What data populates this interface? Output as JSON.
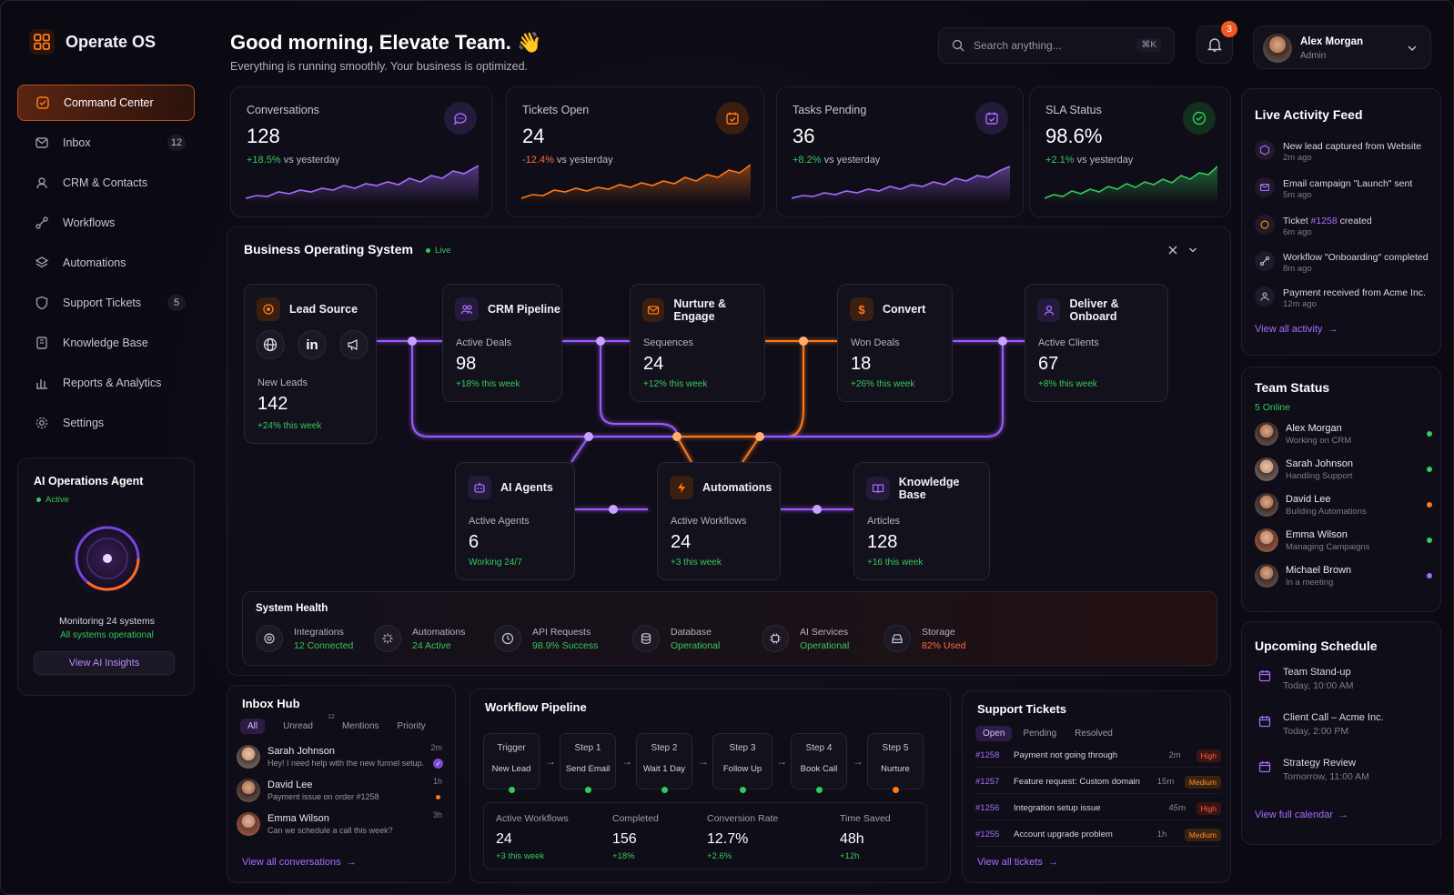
{
  "app": {
    "name": "Operate OS"
  },
  "nav": [
    {
      "label": "Command Center"
    },
    {
      "label": "Inbox",
      "badge": "12"
    },
    {
      "label": "CRM & Contacts"
    },
    {
      "label": "Workflows"
    },
    {
      "label": "Automations"
    },
    {
      "label": "Support Tickets",
      "badge": "5"
    },
    {
      "label": "Knowledge Base"
    },
    {
      "label": "Reports & Analytics"
    },
    {
      "label": "Settings"
    }
  ],
  "agent": {
    "title": "AI Operations Agent",
    "status": "Active",
    "monitoring": "Monitoring 24 systems",
    "ok": "All systems operational",
    "button": "View AI Insights"
  },
  "header": {
    "greeting": "Good morning, Elevate Team. 👋",
    "subtitle": "Everything is running smoothly. Your business is optimized.",
    "search_placeholder": "Search anything...",
    "shortcut": "⌘K",
    "notifications": "3",
    "user_name": "Alex Morgan",
    "user_role": "Admin"
  },
  "kpis": [
    {
      "title": "Conversations",
      "value": "128",
      "delta": "+18.5%",
      "delta_text": "vs yesterday",
      "color": "#a86cff"
    },
    {
      "title": "Tickets Open",
      "value": "24",
      "delta": "-12.4%",
      "delta_text": "vs yesterday",
      "color": "#ff7a1a"
    },
    {
      "title": "Tasks Pending",
      "value": "36",
      "delta": "+8.2%",
      "delta_text": "vs yesterday",
      "color": "#a86cff"
    },
    {
      "title": "SLA Status",
      "value": "98.6%",
      "delta": "+2.1%",
      "delta_text": "vs yesterday",
      "color": "#35c95c"
    }
  ],
  "bos": {
    "title": "Business Operating System",
    "live": "Live",
    "lead": {
      "title": "Lead Source",
      "label": "New Leads",
      "value": "142",
      "growth": "+24% this week"
    },
    "nodes": [
      {
        "title": "CRM Pipeline",
        "label": "Active Deals",
        "value": "98",
        "growth": "+18% this week"
      },
      {
        "title": "Nurture & Engage",
        "label": "Sequences",
        "value": "24",
        "growth": "+12% this week"
      },
      {
        "title": "Convert",
        "label": "Won Deals",
        "value": "18",
        "growth": "+26% this week"
      },
      {
        "title": "Deliver & Onboard",
        "label": "Active Clients",
        "value": "67",
        "growth": "+8% this week"
      },
      {
        "title": "AI Agents",
        "label": "Active Agents",
        "value": "6",
        "growth": "Working 24/7"
      },
      {
        "title": "Automations",
        "label": "Active Workflows",
        "value": "24",
        "growth": "+3 this week"
      },
      {
        "title": "Knowledge Base",
        "label": "Articles",
        "value": "128",
        "growth": "+16 this week"
      }
    ],
    "health": {
      "title": "System Health",
      "items": [
        {
          "name": "Integrations",
          "status": "12 Connected"
        },
        {
          "name": "Automations",
          "status": "24 Active"
        },
        {
          "name": "API Requests",
          "status": "98.9% Success"
        },
        {
          "name": "Database",
          "status": "Operational"
        },
        {
          "name": "AI Services",
          "status": "Operational"
        },
        {
          "name": "Storage",
          "status": "82% Used"
        }
      ]
    }
  },
  "feed": {
    "title": "Live Activity Feed",
    "items": [
      {
        "text": "New lead captured from Website",
        "time": "2m ago"
      },
      {
        "text": "Email campaign \"Launch\" sent",
        "time": "5m ago"
      },
      {
        "text_pre": "Ticket ",
        "text_link": "#1258",
        "text_post": " created",
        "time": "6m ago"
      },
      {
        "text": "Workflow \"Onboarding\" completed",
        "time": "8m ago"
      },
      {
        "text": "Payment received from Acme Inc.",
        "time": "12m ago"
      }
    ],
    "link": "View all activity"
  },
  "team": {
    "title": "Team Status",
    "online": "5 Online",
    "members": [
      {
        "name": "Alex Morgan",
        "status": "Working on CRM",
        "dot": "#35c95c"
      },
      {
        "name": "Sarah Johnson",
        "status": "Handling Support",
        "dot": "#35c95c"
      },
      {
        "name": "David Lee",
        "status": "Building Automations",
        "dot": "#ff7a1a"
      },
      {
        "name": "Emma Wilson",
        "status": "Managing Campaigns",
        "dot": "#35c95c"
      },
      {
        "name": "Michael Brown",
        "status": "In a meeting",
        "dot": "#a86cff"
      }
    ]
  },
  "schedule": {
    "title": "Upcoming Schedule",
    "items": [
      {
        "title": "Team Stand-up",
        "time": "Today, 10:00 AM"
      },
      {
        "title": "Client Call – Acme Inc.",
        "time": "Today, 2:00 PM"
      },
      {
        "title": "Strategy Review",
        "time": "Tomorrow, 11:00 AM"
      }
    ],
    "link": "View full calendar"
  },
  "inbox": {
    "title": "Inbox Hub",
    "tabs": [
      "All",
      "Unread",
      "Mentions",
      "Priority"
    ],
    "unread_count": "12",
    "messages": [
      {
        "name": "Sarah Johnson",
        "preview": "Hey! I need help with the new funnel setup.",
        "time": "2m"
      },
      {
        "name": "David Lee",
        "preview": "Payment issue on order #1258",
        "time": "1h"
      },
      {
        "name": "Emma Wilson",
        "preview": "Can we schedule a call this week?",
        "time": "3h"
      }
    ],
    "link": "View all conversations"
  },
  "workflow": {
    "title": "Workflow Pipeline",
    "steps": [
      {
        "step": "Trigger",
        "name": "New Lead",
        "dot": "#35c95c"
      },
      {
        "step": "Step 1",
        "name": "Send Email",
        "dot": "#35c95c"
      },
      {
        "step": "Step 2",
        "name": "Wait 1 Day",
        "dot": "#35c95c"
      },
      {
        "step": "Step 3",
        "name": "Follow Up",
        "dot": "#35c95c"
      },
      {
        "step": "Step 4",
        "name": "Book Call",
        "dot": "#35c95c"
      },
      {
        "step": "Step 5",
        "name": "Nurture",
        "dot": "#ff7a1a"
      }
    ],
    "stats": [
      {
        "label": "Active Workflows",
        "value": "24",
        "sub": "+3 this week"
      },
      {
        "label": "Completed",
        "value": "156",
        "sub": "+18%"
      },
      {
        "label": "Conversion Rate",
        "value": "12.7%",
        "sub": "+2.6%"
      },
      {
        "label": "Time Saved",
        "value": "48h",
        "sub": "+12h"
      }
    ]
  },
  "tickets": {
    "title": "Support Tickets",
    "tabs": [
      "Open",
      "Pending",
      "Resolved"
    ],
    "rows": [
      {
        "id": "#1258",
        "title": "Payment not going through",
        "age": "2m",
        "priority": "High"
      },
      {
        "id": "#1257",
        "title": "Feature request: Custom domain",
        "age": "15m",
        "priority": "Medium"
      },
      {
        "id": "#1256",
        "title": "Integration setup issue",
        "age": "45m",
        "priority": "High"
      },
      {
        "id": "#1255",
        "title": "Account upgrade problem",
        "age": "1h",
        "priority": "Medium"
      }
    ],
    "link": "View all tickets"
  }
}
